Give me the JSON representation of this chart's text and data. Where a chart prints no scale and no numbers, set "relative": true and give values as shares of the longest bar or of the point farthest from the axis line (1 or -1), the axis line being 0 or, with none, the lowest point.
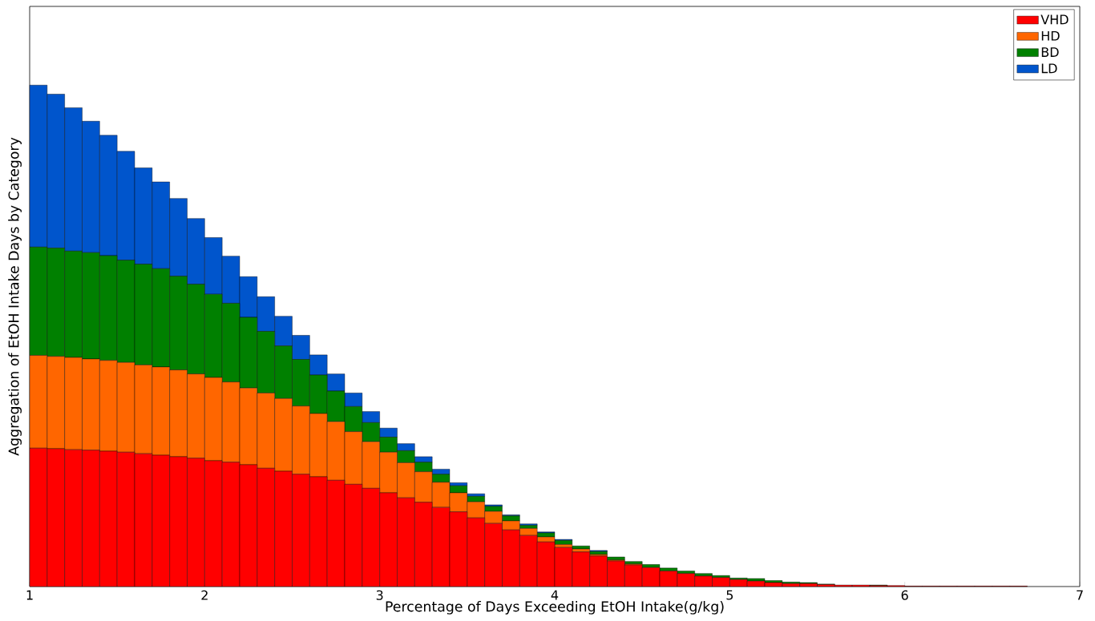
{
  "chart_data": {
    "type": "bar",
    "stacked": true,
    "relative": true,
    "legend": "top right",
    "xlabel": "Percentage of Days Exceeding EtOH Intake(g/kg)",
    "ylabel": "Aggregation of EtOH Intake Days by Category",
    "xlim": [
      1,
      7
    ],
    "xticks": [
      1,
      2,
      3,
      4,
      5,
      6,
      7
    ],
    "x": [
      1.05,
      1.15,
      1.25,
      1.35,
      1.45,
      1.55,
      1.65,
      1.75,
      1.85,
      1.95,
      2.05,
      2.15,
      2.25,
      2.35,
      2.45,
      2.55,
      2.65,
      2.75,
      2.85,
      2.95,
      3.05,
      3.15,
      3.25,
      3.35,
      3.45,
      3.55,
      3.65,
      3.75,
      3.85,
      3.95,
      4.05,
      4.15,
      4.25,
      4.35,
      4.45,
      4.55,
      4.65,
      4.75,
      4.85,
      4.95,
      5.05,
      5.15,
      5.25,
      5.35,
      5.45,
      5.55,
      5.65,
      5.75,
      5.85,
      5.95,
      6.05,
      6.15,
      6.25,
      6.35,
      6.45,
      6.55,
      6.65
    ],
    "series": [
      {
        "name": "VHD",
        "color": "#ff0000",
        "values": [
          0.276,
          0.275,
          0.273,
          0.272,
          0.27,
          0.268,
          0.265,
          0.262,
          0.259,
          0.256,
          0.251,
          0.248,
          0.243,
          0.236,
          0.23,
          0.224,
          0.219,
          0.212,
          0.204,
          0.196,
          0.187,
          0.177,
          0.168,
          0.158,
          0.149,
          0.137,
          0.126,
          0.113,
          0.102,
          0.089,
          0.078,
          0.069,
          0.061,
          0.051,
          0.043,
          0.038,
          0.031,
          0.026,
          0.021,
          0.018,
          0.014,
          0.011,
          0.008,
          0.006,
          0.006,
          0.004,
          0.003,
          0.003,
          0.002,
          0.002,
          0.001,
          0.001,
          0.001,
          0.001,
          0.001,
          0.001,
          0.001
        ]
      },
      {
        "name": "HD",
        "color": "#ff6600",
        "values": [
          0.185,
          0.184,
          0.184,
          0.182,
          0.181,
          0.179,
          0.177,
          0.176,
          0.173,
          0.168,
          0.166,
          0.16,
          0.153,
          0.15,
          0.145,
          0.136,
          0.126,
          0.117,
          0.105,
          0.093,
          0.081,
          0.07,
          0.061,
          0.05,
          0.038,
          0.032,
          0.024,
          0.018,
          0.014,
          0.01,
          0.006,
          0.006,
          0.003,
          0.002,
          0.002,
          0,
          0,
          0,
          0,
          0,
          0,
          0,
          0,
          0,
          0,
          0,
          0,
          0,
          0,
          0,
          0,
          0,
          0,
          0,
          0,
          0,
          0
        ]
      },
      {
        "name": "BD",
        "color": "#008000",
        "values": [
          0.216,
          0.216,
          0.212,
          0.212,
          0.209,
          0.204,
          0.201,
          0.196,
          0.187,
          0.179,
          0.166,
          0.157,
          0.141,
          0.123,
          0.105,
          0.093,
          0.077,
          0.061,
          0.05,
          0.038,
          0.03,
          0.024,
          0.019,
          0.016,
          0.014,
          0.011,
          0.01,
          0.01,
          0.006,
          0.008,
          0.008,
          0.006,
          0.006,
          0.006,
          0.005,
          0.006,
          0.006,
          0.005,
          0.005,
          0.004,
          0.003,
          0.005,
          0.004,
          0.003,
          0.002,
          0.001,
          null,
          null,
          0.001,
          0,
          0,
          0,
          0,
          0,
          0,
          0,
          0
        ]
      },
      {
        "name": "LD",
        "color": "#0055cc",
        "values": [
          0.323,
          0.307,
          0.286,
          0.262,
          0.24,
          0.217,
          0.192,
          0.173,
          0.155,
          0.131,
          0.113,
          0.094,
          0.081,
          0.069,
          0.059,
          0.048,
          0.04,
          0.034,
          0.027,
          0.022,
          0.018,
          0.014,
          0.011,
          0.01,
          0.006,
          0.005,
          0.003,
          0.002,
          0.003,
          0.002,
          0.002,
          0,
          0.002,
          0,
          0,
          0,
          0,
          0,
          0,
          0,
          0,
          0,
          0,
          0,
          0,
          0,
          0,
          0,
          0,
          0,
          0,
          0,
          0,
          0,
          0,
          0,
          0
        ]
      }
    ]
  }
}
